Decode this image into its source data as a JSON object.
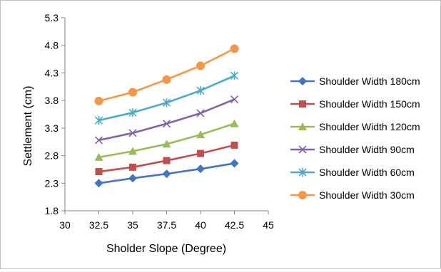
{
  "chart_data": {
    "type": "line",
    "xlabel": "Sholder Slope (Degree)",
    "ylabel": "Settlement (cm)",
    "xlim": [
      30,
      45
    ],
    "ylim": [
      1.8,
      5.3
    ],
    "xticks": [
      30,
      32.5,
      35,
      37.5,
      40,
      42.5,
      45
    ],
    "yticks": [
      1.8,
      2.3,
      2.8,
      3.3,
      3.8,
      4.3,
      4.8,
      5.3
    ],
    "x": [
      32.5,
      35,
      37.5,
      40,
      42.5
    ],
    "grid": false,
    "legend_position": "right",
    "series": [
      {
        "name": "Shoulder Width 180cm",
        "values": [
          2.3,
          2.39,
          2.47,
          2.56,
          2.66
        ],
        "color": "#4472c4",
        "marker": "diamond"
      },
      {
        "name": "Shoulder Width 150cm",
        "values": [
          2.51,
          2.59,
          2.71,
          2.84,
          2.99
        ],
        "color": "#c0504d",
        "marker": "square"
      },
      {
        "name": "Shoulder Width 120cm",
        "values": [
          2.77,
          2.88,
          3.01,
          3.18,
          3.38
        ],
        "color": "#9bbb59",
        "marker": "triangle"
      },
      {
        "name": "Shoulder Width 90cm",
        "values": [
          3.08,
          3.21,
          3.38,
          3.57,
          3.82
        ],
        "color": "#8064a2",
        "marker": "x"
      },
      {
        "name": "Shoulder Width 60cm",
        "values": [
          3.44,
          3.58,
          3.76,
          3.98,
          4.25
        ],
        "color": "#4bacc6",
        "marker": "star"
      },
      {
        "name": "Shoulder Width 30cm",
        "values": [
          3.79,
          3.95,
          4.18,
          4.43,
          4.74
        ],
        "color": "#f79646",
        "marker": "circle"
      }
    ]
  }
}
